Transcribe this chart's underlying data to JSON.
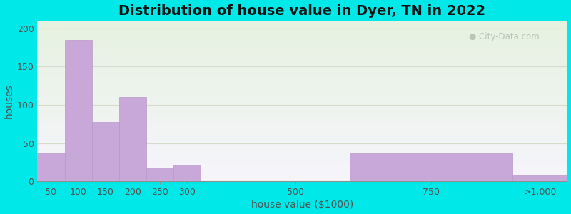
{
  "title": "Distribution of house value in Dyer, TN in 2022",
  "xlabel": "house value ($1000)",
  "ylabel": "houses",
  "bar_labels": [
    "50",
    "100",
    "150",
    "200",
    "250",
    "300",
    "500",
    "750",
    ">1,000"
  ],
  "bar_values": [
    37,
    185,
    78,
    110,
    18,
    22,
    0,
    37,
    8
  ],
  "bar_lefts": [
    25,
    75,
    125,
    175,
    225,
    275,
    350,
    600,
    900
  ],
  "bar_widths": [
    50,
    50,
    50,
    50,
    50,
    50,
    250,
    300,
    100
  ],
  "bar_color": "#c8a8d8",
  "bar_edgecolor": "#b899c8",
  "ylim": [
    0,
    210
  ],
  "yticks": [
    0,
    50,
    100,
    150,
    200
  ],
  "xlim": [
    25,
    1000
  ],
  "x_tick_positions": [
    50,
    100,
    150,
    200,
    250,
    300,
    500,
    750,
    950
  ],
  "background_outer": "#00e8e8",
  "background_inner": "#e6f2e0",
  "grid_color": "#d5ddc8",
  "title_fontsize": 14,
  "label_fontsize": 10,
  "tick_fontsize": 9,
  "watermark": "City-Data.com"
}
